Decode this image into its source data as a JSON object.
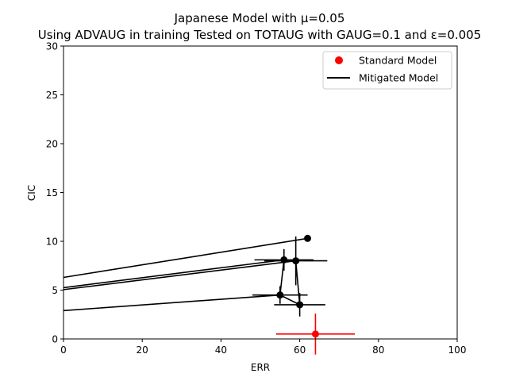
{
  "chart_data": {
    "type": "scatter",
    "title_line1": "Japanese Model with μ=0.05",
    "title_line2": "Using ADVAUG in training Tested on TOTAUG with GAUG=0.1 and ε=0.005",
    "xlabel": "ERR",
    "ylabel": "CIC",
    "xlim": [
      0,
      100
    ],
    "ylim": [
      0,
      30
    ],
    "xticks": [
      0,
      20,
      40,
      60,
      80,
      100
    ],
    "yticks": [
      0,
      5,
      10,
      15,
      20,
      25,
      30
    ],
    "grid": false,
    "legend_position": "top-right",
    "standard_model": {
      "name": "Standard Model",
      "color": "#ff0000",
      "points": [
        {
          "x": 64.0,
          "y": 0.5,
          "xerr": 10.0,
          "yerr": 2.1
        }
      ]
    },
    "mitigated_model": {
      "name": "Mitigated Model",
      "color": "#000000",
      "points": [
        {
          "x": 62.0,
          "y": 10.3,
          "xerr": 0.0,
          "yerr": 0.0
        },
        {
          "x": 56.0,
          "y": 8.1,
          "xerr": 7.5,
          "yerr": 1.1
        },
        {
          "x": 59.0,
          "y": 8.0,
          "xerr": 8.0,
          "yerr": 2.5
        },
        {
          "x": 55.0,
          "y": 4.5,
          "xerr": 7.0,
          "yerr": 0.9
        },
        {
          "x": 60.0,
          "y": 3.5,
          "xerr": 6.5,
          "yerr": 1.2
        }
      ],
      "connecting_line": [
        {
          "x": 62.0,
          "y": 10.3
        },
        {
          "x": 0.0,
          "y": 6.3
        }
      ],
      "fit_lines": [
        {
          "x1": 0,
          "y1": 5.25,
          "x2": 56.0,
          "y2": 8.1
        },
        {
          "x1": 0,
          "y1": 5.05,
          "x2": 59.0,
          "y2": 8.0
        },
        {
          "x1": 0,
          "y1": 2.9,
          "x2": 55.0,
          "y2": 4.5
        }
      ],
      "path": [
        {
          "x": 56.0,
          "y": 8.1
        },
        {
          "x": 55.0,
          "y": 4.5
        },
        {
          "x": 60.0,
          "y": 3.5
        },
        {
          "x": 59.0,
          "y": 8.0
        },
        {
          "x": 56.0,
          "y": 8.1
        }
      ]
    }
  }
}
